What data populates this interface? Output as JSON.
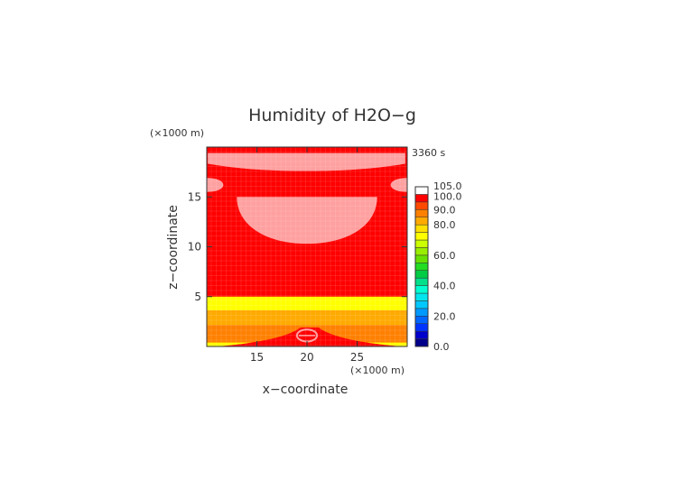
{
  "chart_data": {
    "type": "heatmap",
    "title": "Humidity of H2O−g",
    "xlabel": "x−coordinate",
    "ylabel": "z−coordinate",
    "x_unit": "(×1000 m)",
    "y_unit": "(×1000 m)",
    "time_label": "3360 s",
    "xlim": [
      10,
      30
    ],
    "ylim": [
      0,
      20
    ],
    "x_ticks": [
      15,
      20,
      25
    ],
    "y_ticks": [
      5,
      10,
      15
    ],
    "grid": false,
    "legend": "right",
    "colorbar": {
      "levels": [
        0,
        5,
        10,
        15,
        20,
        25,
        30,
        35,
        40,
        45,
        50,
        55,
        60,
        65,
        70,
        75,
        80,
        85,
        90,
        95,
        100,
        105
      ],
      "colors": [
        "#00008b",
        "#0000cd",
        "#0033ff",
        "#0066ff",
        "#0099ff",
        "#00c8ff",
        "#00e5ee",
        "#00ffd0",
        "#00e08a",
        "#00cc44",
        "#22dd22",
        "#66e000",
        "#99ee00",
        "#ccff00",
        "#ffff00",
        "#ffe000",
        "#ffaa00",
        "#ff8000",
        "#ff4a00",
        "#ff0000",
        "#ffffff"
      ],
      "tick_labels": [
        {
          "value": 0,
          "label": "0.0"
        },
        {
          "value": 20,
          "label": "20.0"
        },
        {
          "value": 40,
          "label": "40.0"
        },
        {
          "value": 60,
          "label": "60.0"
        },
        {
          "value": 80,
          "label": "80.0"
        },
        {
          "value": 90,
          "label": "90.0"
        },
        {
          "value": 100,
          "label": "100.0"
        },
        {
          "value": 105,
          "label": "105.0"
        }
      ]
    },
    "field_regions": [
      {
        "level": "95-100",
        "color": "#ff0000",
        "shape": "background"
      },
      {
        "level": "100-105",
        "color": "#ffa0a0",
        "shape": "upper-band",
        "x": [
          10.1,
          29.8
        ],
        "y": [
          17.6,
          19.4
        ]
      },
      {
        "level": "100-105",
        "color": "#ffa0a0",
        "shape": "lens",
        "x": [
          13,
          27
        ],
        "y": [
          10.3,
          15.0
        ]
      },
      {
        "level": "100-105",
        "color": "#ffa0a0",
        "shape": "edge-lobe",
        "x": [
          10,
          12.2
        ],
        "y": [
          15.5,
          16.9
        ]
      },
      {
        "level": "100-105",
        "color": "#ffa0a0",
        "shape": "edge-lobe",
        "x": [
          27.8,
          30
        ],
        "y": [
          15.5,
          16.9
        ]
      },
      {
        "level": "75-80",
        "color": "#ffff00",
        "shape": "band",
        "y": [
          3.6,
          5.0
        ]
      },
      {
        "level": "80-85",
        "color": "#ffaa00",
        "shape": "band",
        "y": [
          2.1,
          3.6
        ]
      },
      {
        "level": "85-90",
        "color": "#ff8000",
        "shape": "band",
        "y": [
          0.4,
          2.1
        ]
      },
      {
        "level": "75-80",
        "color": "#ffff00",
        "shape": "band",
        "y": [
          0,
          0.4
        ]
      },
      {
        "level": "95-100",
        "color": "#ff0000",
        "shape": "bottom-wedge",
        "x": [
          11,
          29.5
        ],
        "y": [
          0,
          1.9
        ]
      },
      {
        "level": "100-105",
        "color": "#ffa0a0",
        "shape": "spot",
        "x": [
          19,
          21
        ],
        "y": [
          0.5,
          1.7
        ]
      }
    ]
  }
}
